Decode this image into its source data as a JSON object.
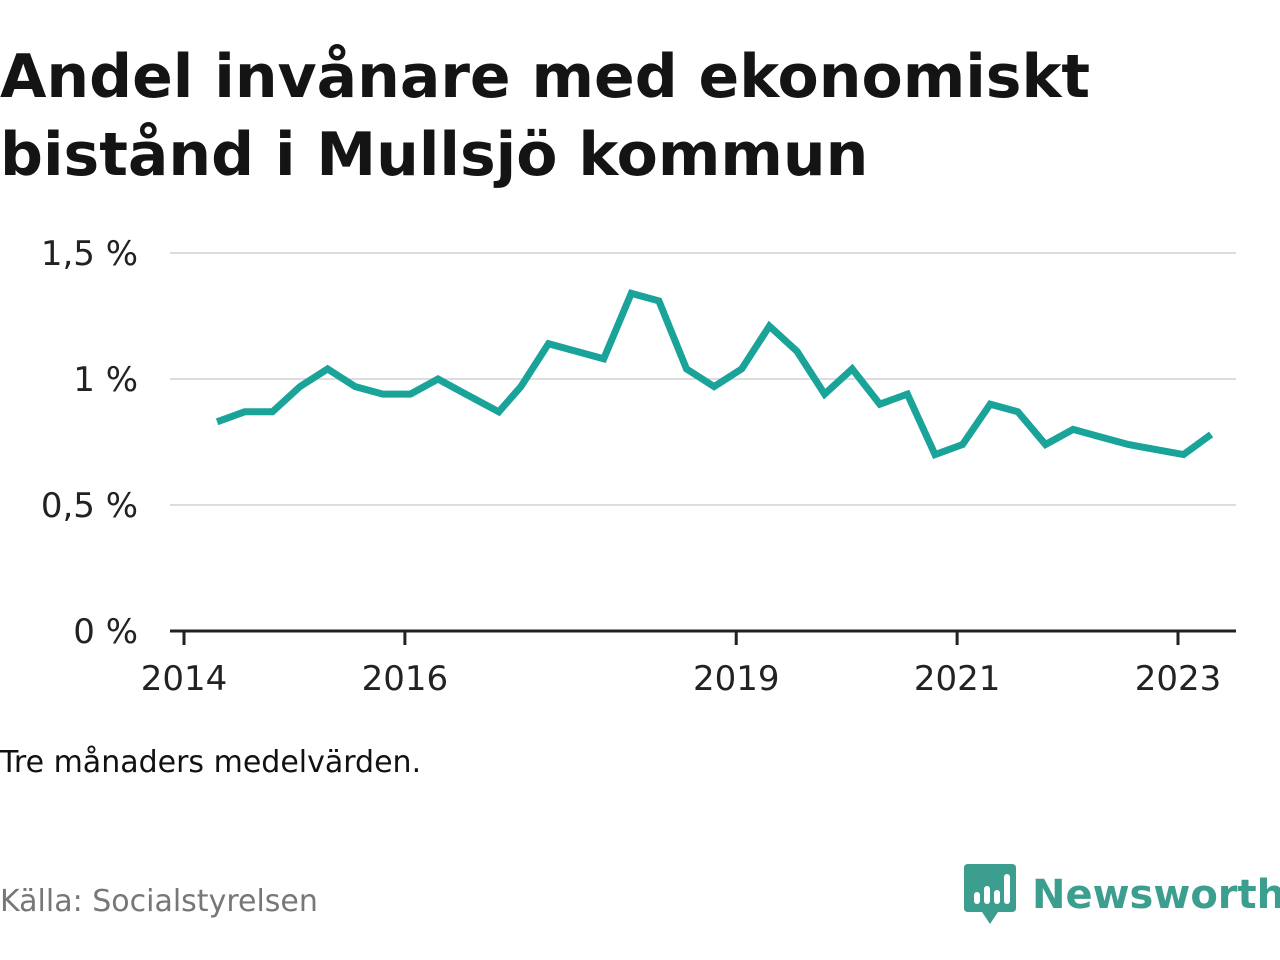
{
  "title": "Andel invånare med ekonomiskt bistånd i Mullsjö kommun",
  "note": "Tre månaders medelvärden.",
  "source": "Källa: Socialstyrelsen",
  "brand": {
    "name": "Newsworthy",
    "icon": "newsworthy-logo-icon",
    "color": "#3c9e8f"
  },
  "colors": {
    "line": "#1aa398",
    "grid": "#dddddd",
    "axis": "#222222"
  },
  "chart_data": {
    "type": "line",
    "title": "Andel invånare med ekonomiskt bistånd i Mullsjö kommun",
    "xlabel": "",
    "ylabel": "",
    "ylim": [
      0,
      1.5
    ],
    "xlim": [
      2014.0,
      2023.5
    ],
    "y_ticks": [
      {
        "value": 0,
        "label": "0 %"
      },
      {
        "value": 0.5,
        "label": "0,5 %"
      },
      {
        "value": 1,
        "label": "1 %"
      },
      {
        "value": 1.5,
        "label": "1,5 %"
      }
    ],
    "x_ticks": [
      {
        "value": 2014.0,
        "label": "2014"
      },
      {
        "value": 2016.0,
        "label": "2016"
      },
      {
        "value": 2019.0,
        "label": "2019"
      },
      {
        "value": 2021.0,
        "label": "2021"
      },
      {
        "value": 2023.0,
        "label": "2023"
      }
    ],
    "grid": true,
    "series": [
      {
        "x": [
          2014.3,
          2014.55,
          2014.8,
          2015.05,
          2015.3,
          2015.55,
          2015.8,
          2016.05,
          2016.3,
          2016.55,
          2016.85,
          2017.05,
          2017.3,
          2017.55,
          2017.8,
          2018.05,
          2018.3,
          2018.55,
          2018.8,
          2019.05,
          2019.3,
          2019.55,
          2019.8,
          2020.05,
          2020.3,
          2020.55,
          2020.8,
          2021.05,
          2021.3,
          2021.55,
          2021.8,
          2022.05,
          2022.3,
          2022.55,
          2022.8,
          2023.05,
          2023.3
        ],
        "values": [
          0.83,
          0.87,
          0.87,
          0.97,
          1.04,
          0.97,
          0.94,
          0.94,
          1.0,
          0.94,
          0.87,
          0.97,
          1.14,
          1.11,
          1.08,
          1.34,
          1.31,
          1.04,
          0.97,
          1.04,
          1.21,
          1.11,
          0.94,
          1.04,
          0.9,
          0.94,
          0.7,
          0.74,
          0.9,
          0.87,
          0.74,
          0.8,
          0.77,
          0.74,
          0.72,
          0.7,
          0.78
        ]
      }
    ]
  }
}
